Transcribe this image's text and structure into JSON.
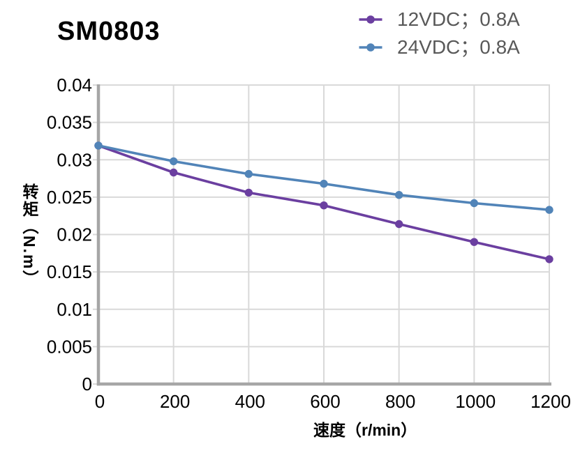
{
  "chart_data": {
    "type": "line",
    "title": "SM0803",
    "xlabel": "速度（r/min）",
    "ylabel": "转矩（N.m）",
    "xlim": [
      0,
      1200
    ],
    "ylim": [
      0,
      0.04
    ],
    "grid": true,
    "legend_position": "top-right",
    "x_ticks": [
      0,
      200,
      400,
      600,
      800,
      1000,
      1200
    ],
    "x_tick_labels": [
      "0",
      "200",
      "400",
      "600",
      "800",
      "1000",
      "1200"
    ],
    "y_ticks": [
      0,
      0.005,
      0.01,
      0.015,
      0.02,
      0.025,
      0.03,
      0.035,
      0.04
    ],
    "y_tick_labels": [
      "0",
      "0.005",
      "0.01",
      "0.015",
      "0.02",
      "0.025",
      "0.03",
      "0.035",
      "0.04"
    ],
    "x": [
      0,
      200,
      400,
      600,
      800,
      1000,
      1200
    ],
    "series": [
      {
        "name": "12VDC；0.8A",
        "color": "#6B3FA0",
        "values": [
          0.0319,
          0.0283,
          0.0256,
          0.0239,
          0.0214,
          0.019,
          0.0167
        ]
      },
      {
        "name": "24VDC；0.8A",
        "color": "#5184B8",
        "values": [
          0.0319,
          0.0298,
          0.0281,
          0.0268,
          0.0253,
          0.0242,
          0.0233
        ]
      }
    ],
    "colors": {
      "grid": "#D9D9D9",
      "axis": "#A6A6A6",
      "tick_label": "#000000",
      "legend_text": "#595959",
      "title": "#000000"
    }
  }
}
